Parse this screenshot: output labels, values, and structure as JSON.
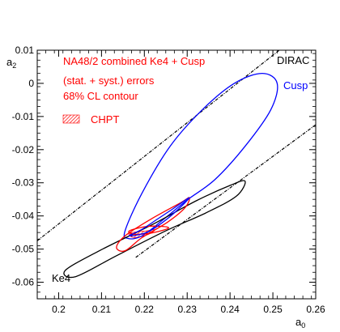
{
  "chart_data": {
    "type": "contour",
    "xlabel": "a₀",
    "ylabel": "a₂",
    "xlim": [
      0.195,
      0.26
    ],
    "ylim": [
      -0.065,
      0.01
    ],
    "xticks": [
      0.2,
      0.21,
      0.22,
      0.23,
      0.24,
      0.25,
      0.26
    ],
    "xtick_labels": [
      "0.2",
      "0.21",
      "0.22",
      "0.23",
      "0.24",
      "0.25",
      "0.26"
    ],
    "yticks": [
      0.01,
      0,
      -0.01,
      -0.02,
      -0.03,
      -0.04,
      -0.05,
      -0.06
    ],
    "ytick_labels": [
      "0.01",
      "0",
      "-0.01",
      "-0.02",
      "-0.03",
      "-0.04",
      "-0.05",
      "-0.06"
    ],
    "annotations": {
      "title_line1": "NA48/2 combined Ke4 + Cusp",
      "title_line2": "(stat. + syst.) errors",
      "title_line3": "68% CL contour",
      "legend_chpt": "CHPT",
      "label_dirac": "DIRAC",
      "label_cusp": "Cusp",
      "label_ke4": "Ke4"
    },
    "colors": {
      "na48": "#ff0000",
      "cusp": "#0000ff",
      "ke4": "#000000",
      "dirac": "#000000",
      "chpt": "#ff0000"
    },
    "dirac_band": {
      "upper": [
        [
          0.195,
          -0.0475
        ],
        [
          0.2515,
          0.01
        ]
      ],
      "lower": [
        [
          0.218,
          -0.0525
        ],
        [
          0.26,
          -0.0125
        ]
      ]
    },
    "contours": [
      {
        "name": "Cusp",
        "color": "#0000ff",
        "points": [
          [
            0.2155,
            -0.0445
          ],
          [
            0.2195,
            -0.033
          ],
          [
            0.226,
            -0.019
          ],
          [
            0.2335,
            -0.008
          ],
          [
            0.241,
            0.0
          ],
          [
            0.2475,
            0.003
          ],
          [
            0.251,
            0.0
          ],
          [
            0.2495,
            -0.008
          ],
          [
            0.2435,
            -0.019
          ],
          [
            0.2365,
            -0.029
          ],
          [
            0.23,
            -0.0352
          ],
          [
            0.2245,
            -0.041
          ],
          [
            0.2195,
            -0.046
          ],
          [
            0.2162,
            -0.0468
          ],
          [
            0.2155,
            -0.0445
          ]
        ]
      },
      {
        "name": "Ke4",
        "color": "#000000",
        "points": [
          [
            0.2015,
            -0.0565
          ],
          [
            0.2095,
            -0.0505
          ],
          [
            0.222,
            -0.0425
          ],
          [
            0.232,
            -0.0355
          ],
          [
            0.24,
            -0.0308
          ],
          [
            0.2435,
            -0.0295
          ],
          [
            0.2415,
            -0.034
          ],
          [
            0.2345,
            -0.039
          ],
          [
            0.225,
            -0.0445
          ],
          [
            0.2135,
            -0.052
          ],
          [
            0.204,
            -0.0583
          ],
          [
            0.2015,
            -0.0565
          ]
        ]
      },
      {
        "name": "Combined",
        "color": "#ff0000",
        "points": [
          [
            0.2135,
            -0.0495
          ],
          [
            0.2155,
            -0.046
          ],
          [
            0.2215,
            -0.041
          ],
          [
            0.2285,
            -0.036
          ],
          [
            0.2305,
            -0.0345
          ],
          [
            0.2295,
            -0.0375
          ],
          [
            0.2255,
            -0.0418
          ],
          [
            0.2195,
            -0.0465
          ],
          [
            0.2155,
            -0.0505
          ],
          [
            0.2135,
            -0.0495
          ]
        ]
      },
      {
        "name": "Narrow",
        "color": "#ff0000",
        "points": [
          [
            0.2165,
            -0.0445
          ],
          [
            0.2205,
            -0.0432
          ],
          [
            0.2245,
            -0.0432
          ],
          [
            0.2255,
            -0.0438
          ],
          [
            0.2215,
            -0.0452
          ],
          [
            0.2175,
            -0.0455
          ],
          [
            0.2165,
            -0.0445
          ]
        ]
      },
      {
        "name": "Cusp inner",
        "color": "#0000ff",
        "points": [
          [
            0.2165,
            -0.046
          ],
          [
            0.2195,
            -0.044
          ],
          [
            0.223,
            -0.041
          ],
          [
            0.2265,
            -0.038
          ],
          [
            0.2305,
            -0.0345
          ],
          [
            0.2275,
            -0.0385
          ],
          [
            0.224,
            -0.0422
          ],
          [
            0.2205,
            -0.045
          ],
          [
            0.2165,
            -0.046
          ]
        ]
      }
    ],
    "chpt_band": [
      [
        0.2165,
        -0.0452
      ],
      [
        0.2205,
        -0.0445
      ],
      [
        0.2225,
        -0.0442
      ],
      [
        0.2205,
        -0.0458
      ],
      [
        0.2175,
        -0.0465
      ],
      [
        0.2165,
        -0.0452
      ]
    ]
  }
}
